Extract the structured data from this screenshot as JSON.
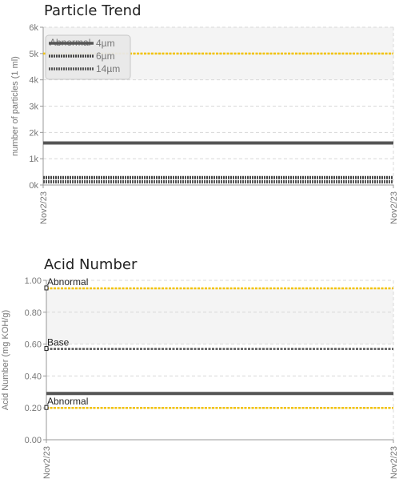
{
  "chart_data": [
    {
      "type": "line",
      "title": "Particle Trend",
      "ylabel": "number of particles (1 ml)",
      "xlabel": "",
      "ylim": [
        0,
        6000
      ],
      "y_ticks": [
        "0k",
        "1k",
        "2k",
        "3k",
        "4k",
        "5k",
        "6k"
      ],
      "x_ticks": [
        "Nov2/23",
        "Nov2/23"
      ],
      "grid": true,
      "legend_position": "top-left",
      "band": [
        4000,
        6000
      ],
      "series": [
        {
          "name": "4µm",
          "values": [
            1600,
            1600
          ],
          "color": "#555555",
          "style": "solid"
        },
        {
          "name": "6µm",
          "values": [
            280,
            280
          ],
          "color": "#444444",
          "style": "dotted"
        },
        {
          "name": "14µm",
          "values": [
            120,
            120
          ],
          "color": "#555555",
          "style": "dotted"
        }
      ],
      "reference_lines": [
        {
          "value": 5000,
          "color": "#f2c200"
        }
      ],
      "legend_overlay_text": "Abnormal"
    },
    {
      "type": "line",
      "title": "Acid Number",
      "ylabel": "Acid Number (mg KOH/g)",
      "xlabel": "",
      "ylim": [
        0,
        1
      ],
      "y_ticks": [
        "0.00",
        "0.20",
        "0.40",
        "0.60",
        "0.80",
        "1.00"
      ],
      "x_ticks": [
        "Nov2/23",
        "Nov2/23"
      ],
      "grid": true,
      "band": [
        0.6,
        0.95
      ],
      "series": [
        {
          "values": [
            0.29,
            0.29
          ],
          "color": "#555555",
          "style": "solid"
        }
      ],
      "reference_lines": [
        {
          "value": 0.95,
          "label": "Abnormal",
          "color": "#f2c200"
        },
        {
          "value": 0.57,
          "label": "Base",
          "color": "#555555"
        },
        {
          "value": 0.2,
          "label": "Abnormal",
          "color": "#f2c200"
        }
      ]
    }
  ]
}
